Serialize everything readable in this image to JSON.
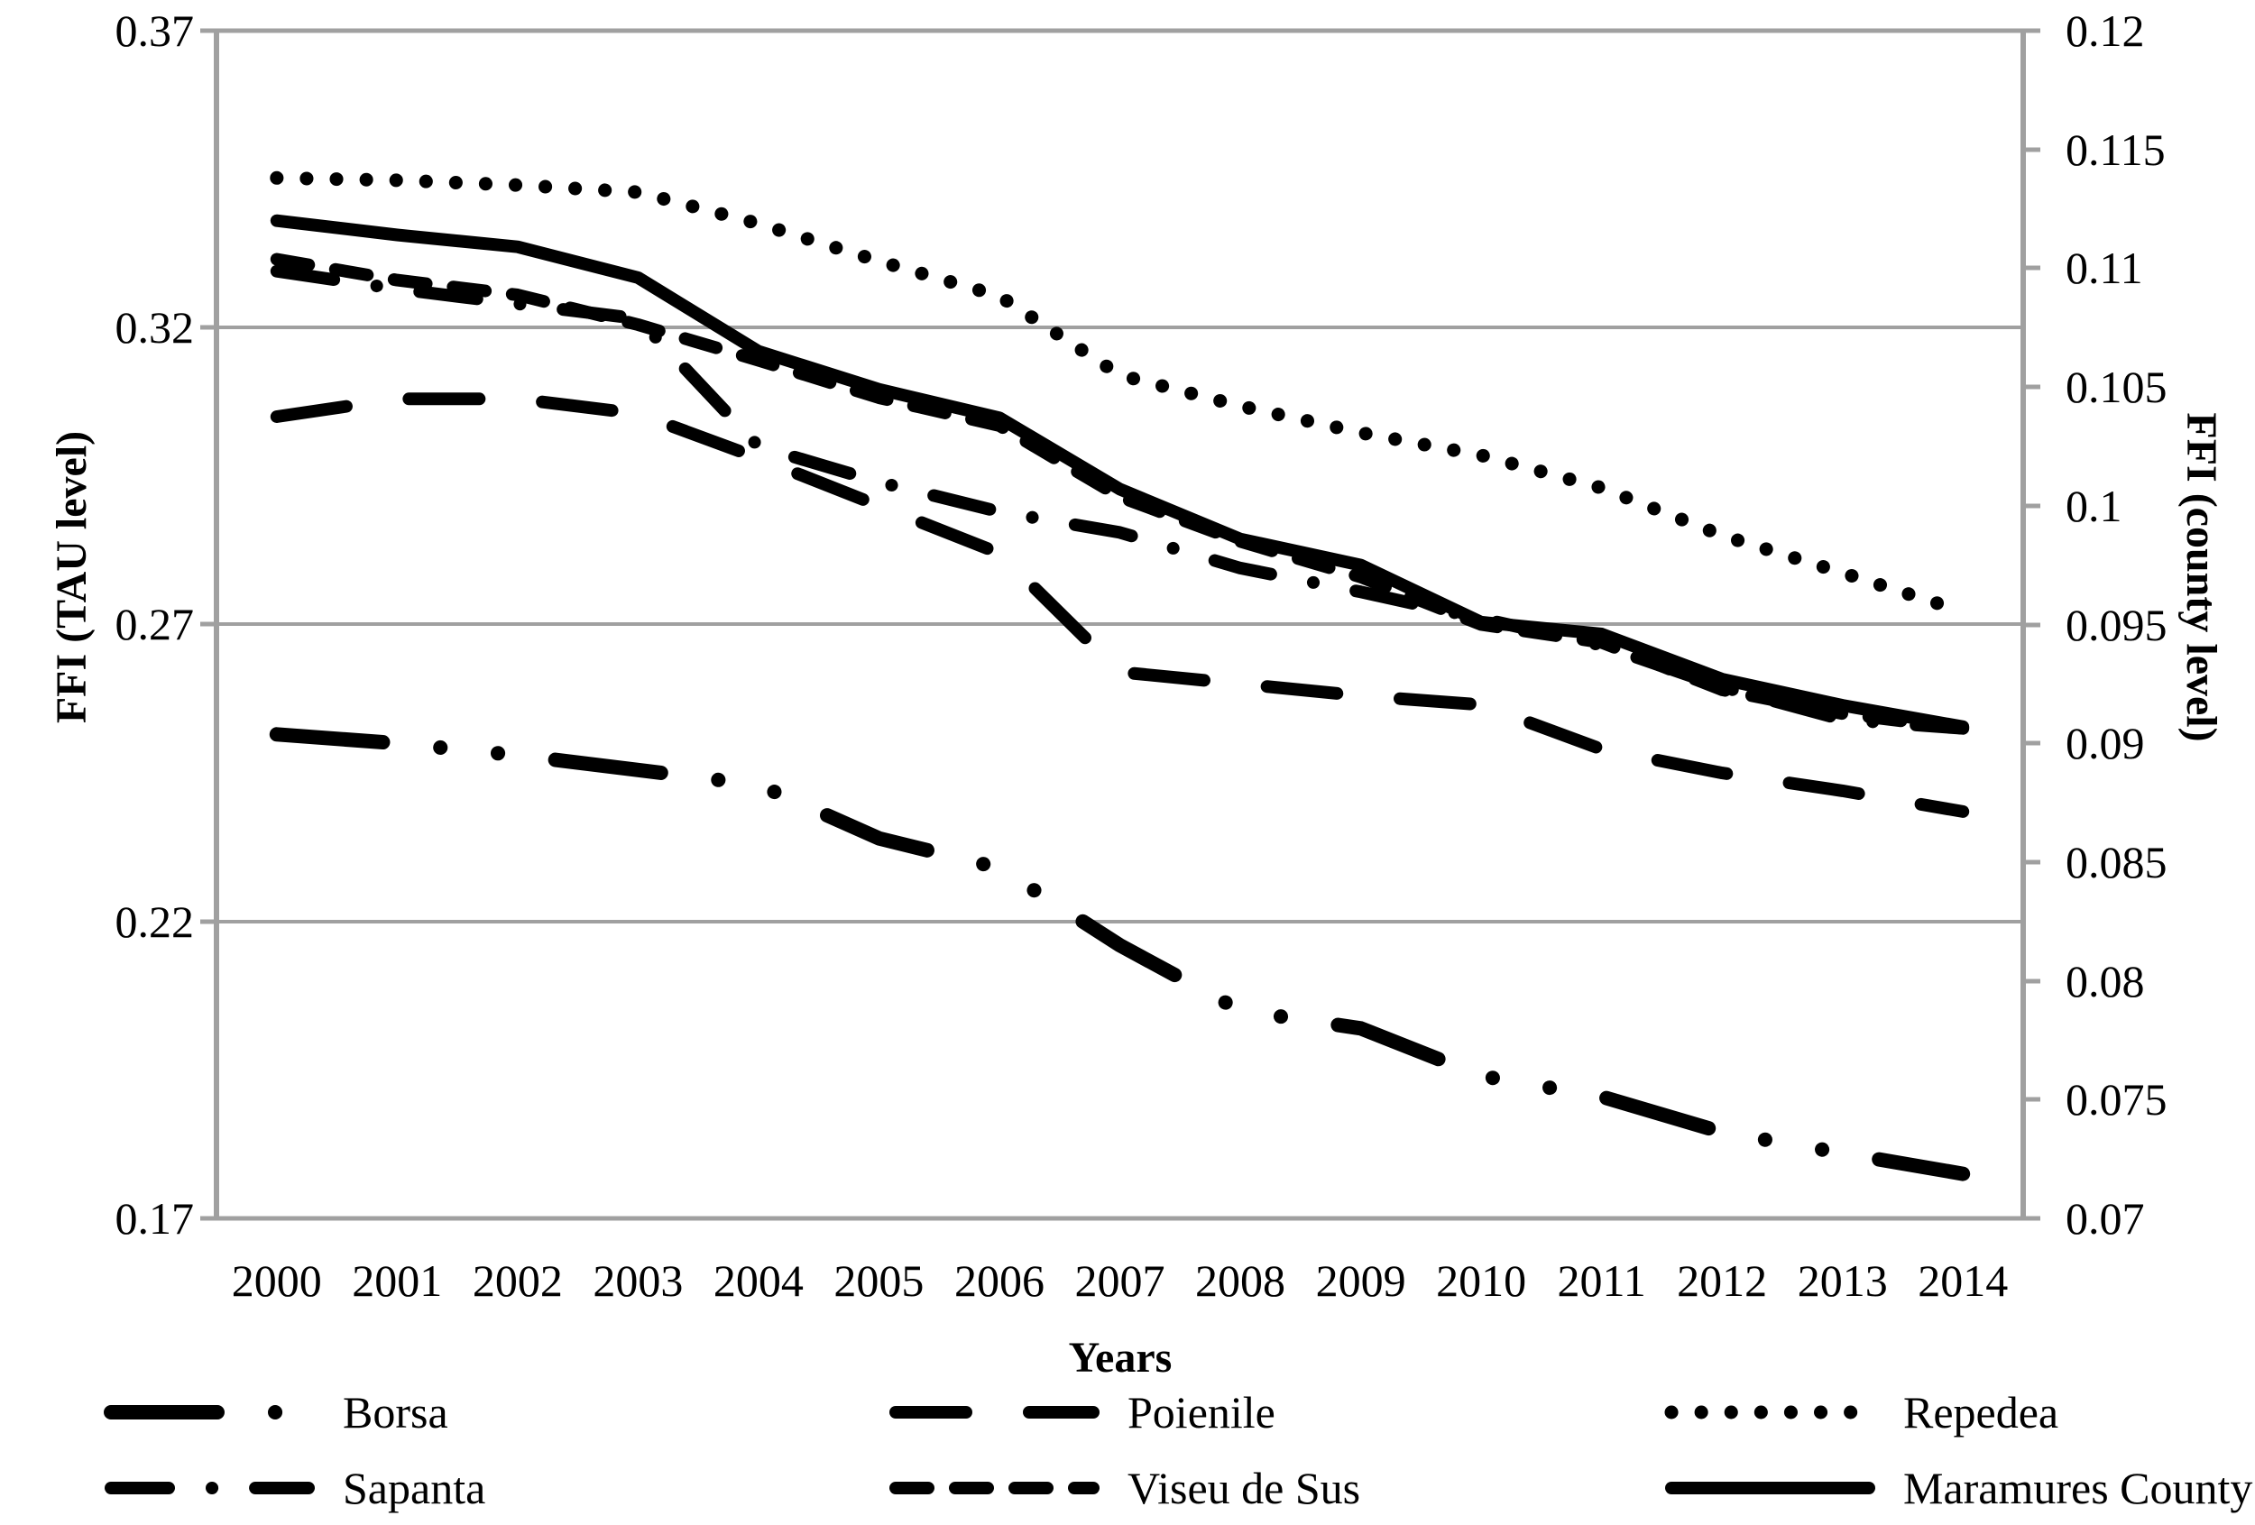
{
  "chart_data": {
    "type": "line",
    "title": "",
    "xlabel": "Years",
    "ylabel_left": "FFI (TAU level)",
    "ylabel_right": "FFI (county level)",
    "categories": [
      "2000",
      "2001",
      "2002",
      "2003",
      "2004",
      "2005",
      "2006",
      "2007",
      "2008",
      "2009",
      "2010",
      "2011",
      "2012",
      "2013",
      "2014"
    ],
    "left_axis": {
      "min": 0.17,
      "max": 0.37,
      "tick_labels": [
        "0.37",
        "0.32",
        "0.27",
        "0.22",
        "0.17"
      ],
      "tick_values": [
        0.37,
        0.32,
        0.27,
        0.22,
        0.17
      ]
    },
    "right_axis": {
      "min": 0.07,
      "max": 0.12,
      "tick_labels": [
        "0.12",
        "0.115",
        "0.11",
        "0.105",
        "0.1",
        "0.095",
        "0.09",
        "0.085",
        "0.08",
        "0.075",
        "0.07"
      ],
      "tick_values": [
        0.12,
        0.115,
        0.11,
        0.105,
        0.1,
        0.095,
        0.09,
        0.085,
        0.08,
        0.075,
        0.07
      ]
    },
    "grid": true,
    "legend_position": "bottom",
    "colors": {
      "line": "#000000",
      "grid": "#a0a0a0",
      "background": "#ffffff"
    },
    "series": [
      {
        "name": "Borsa",
        "axis": "left",
        "style": "dash-dot-dot",
        "values": [
          0.2515,
          0.25,
          0.248,
          0.2455,
          0.243,
          0.234,
          0.229,
          0.216,
          0.205,
          0.202,
          0.194,
          0.1905,
          0.1845,
          0.181,
          0.1775
        ]
      },
      {
        "name": "Poienile",
        "axis": "left",
        "style": "long-dash",
        "values": [
          0.305,
          0.308,
          0.308,
          0.3055,
          0.298,
          0.29,
          0.282,
          0.262,
          0.26,
          0.258,
          0.2565,
          0.249,
          0.245,
          0.242,
          0.2385
        ]
      },
      {
        "name": "Repedea",
        "axis": "left",
        "style": "dotted",
        "values": [
          0.3452,
          0.3448,
          0.344,
          0.3428,
          0.3375,
          0.3312,
          0.3253,
          0.312,
          0.3068,
          0.3023,
          0.2985,
          0.293,
          0.285,
          0.2787,
          0.2722
        ]
      },
      {
        "name": "Sapanta",
        "axis": "left",
        "style": "dash-dot",
        "values": [
          0.3295,
          0.3265,
          0.324,
          0.3215,
          0.3,
          0.294,
          0.289,
          0.2855,
          0.2795,
          0.2755,
          0.271,
          0.2665,
          0.2595,
          0.254,
          0.2525
        ]
      },
      {
        "name": "Viseu de Sus",
        "axis": "left",
        "style": "dense-dash",
        "values": [
          0.3315,
          0.328,
          0.3255,
          0.3205,
          0.3145,
          0.3082,
          0.3035,
          0.2915,
          0.284,
          0.278,
          0.27,
          0.267,
          0.259,
          0.255,
          0.2525
        ]
      },
      {
        "name": "Maramures County",
        "axis": "right",
        "style": "solid",
        "values": [
          0.112,
          0.1114,
          0.1109,
          0.1096,
          0.1065,
          0.1049,
          0.1037,
          0.1007,
          0.0986,
          0.0975,
          0.0951,
          0.0946,
          0.0927,
          0.0916,
          0.0907
        ]
      }
    ]
  }
}
